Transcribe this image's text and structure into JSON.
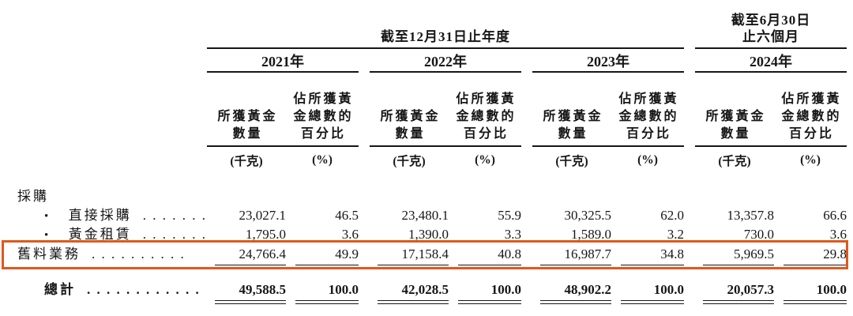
{
  "highlight_color": "#e2571c",
  "header": {
    "annual_period": "截至12月31日止年度",
    "interim_period_line1": "截至6月30日",
    "interim_period_line2": "止六個月",
    "years": [
      "2021年",
      "2022年",
      "2023年",
      "2024年"
    ],
    "qty_header_line1": "所獲黃金",
    "qty_header_line2": "數量",
    "pct_header_line1": "佔所獲黃",
    "pct_header_line2": "金總數的",
    "pct_header_line3": "百分比",
    "qty_unit": "(千克)",
    "pct_unit": "(%)"
  },
  "body": {
    "section_label": "採購",
    "bullet": "•",
    "rows": [
      {
        "label": "直接採購",
        "dots": ".  .  .  .  .  .  .",
        "values": [
          "23,027.1",
          "46.5",
          "23,480.1",
          "55.9",
          "30,325.5",
          "62.0",
          "13,357.8",
          "66.6"
        ]
      },
      {
        "label": "黃金租賃",
        "dots": ".  .  .  .  .  .  .",
        "values": [
          "1,795.0",
          "3.6",
          "1,390.0",
          "3.3",
          "1,589.0",
          "3.2",
          "730.0",
          "3.6"
        ]
      },
      {
        "label": "舊料業務",
        "dots": ".  .  .  .  .  .  .  .  .  .",
        "values": [
          "24,766.4",
          "49.9",
          "17,158.4",
          "40.8",
          "16,987.7",
          "34.8",
          "5,969.5",
          "29.8"
        ]
      }
    ],
    "total": {
      "label": "總計",
      "dots": ".  .  .  .  .  .  .  .  .  .  .  .",
      "values": [
        "49,588.5",
        "100.0",
        "42,028.5",
        "100.0",
        "48,902.2",
        "100.0",
        "20,057.3",
        "100.0"
      ]
    }
  }
}
